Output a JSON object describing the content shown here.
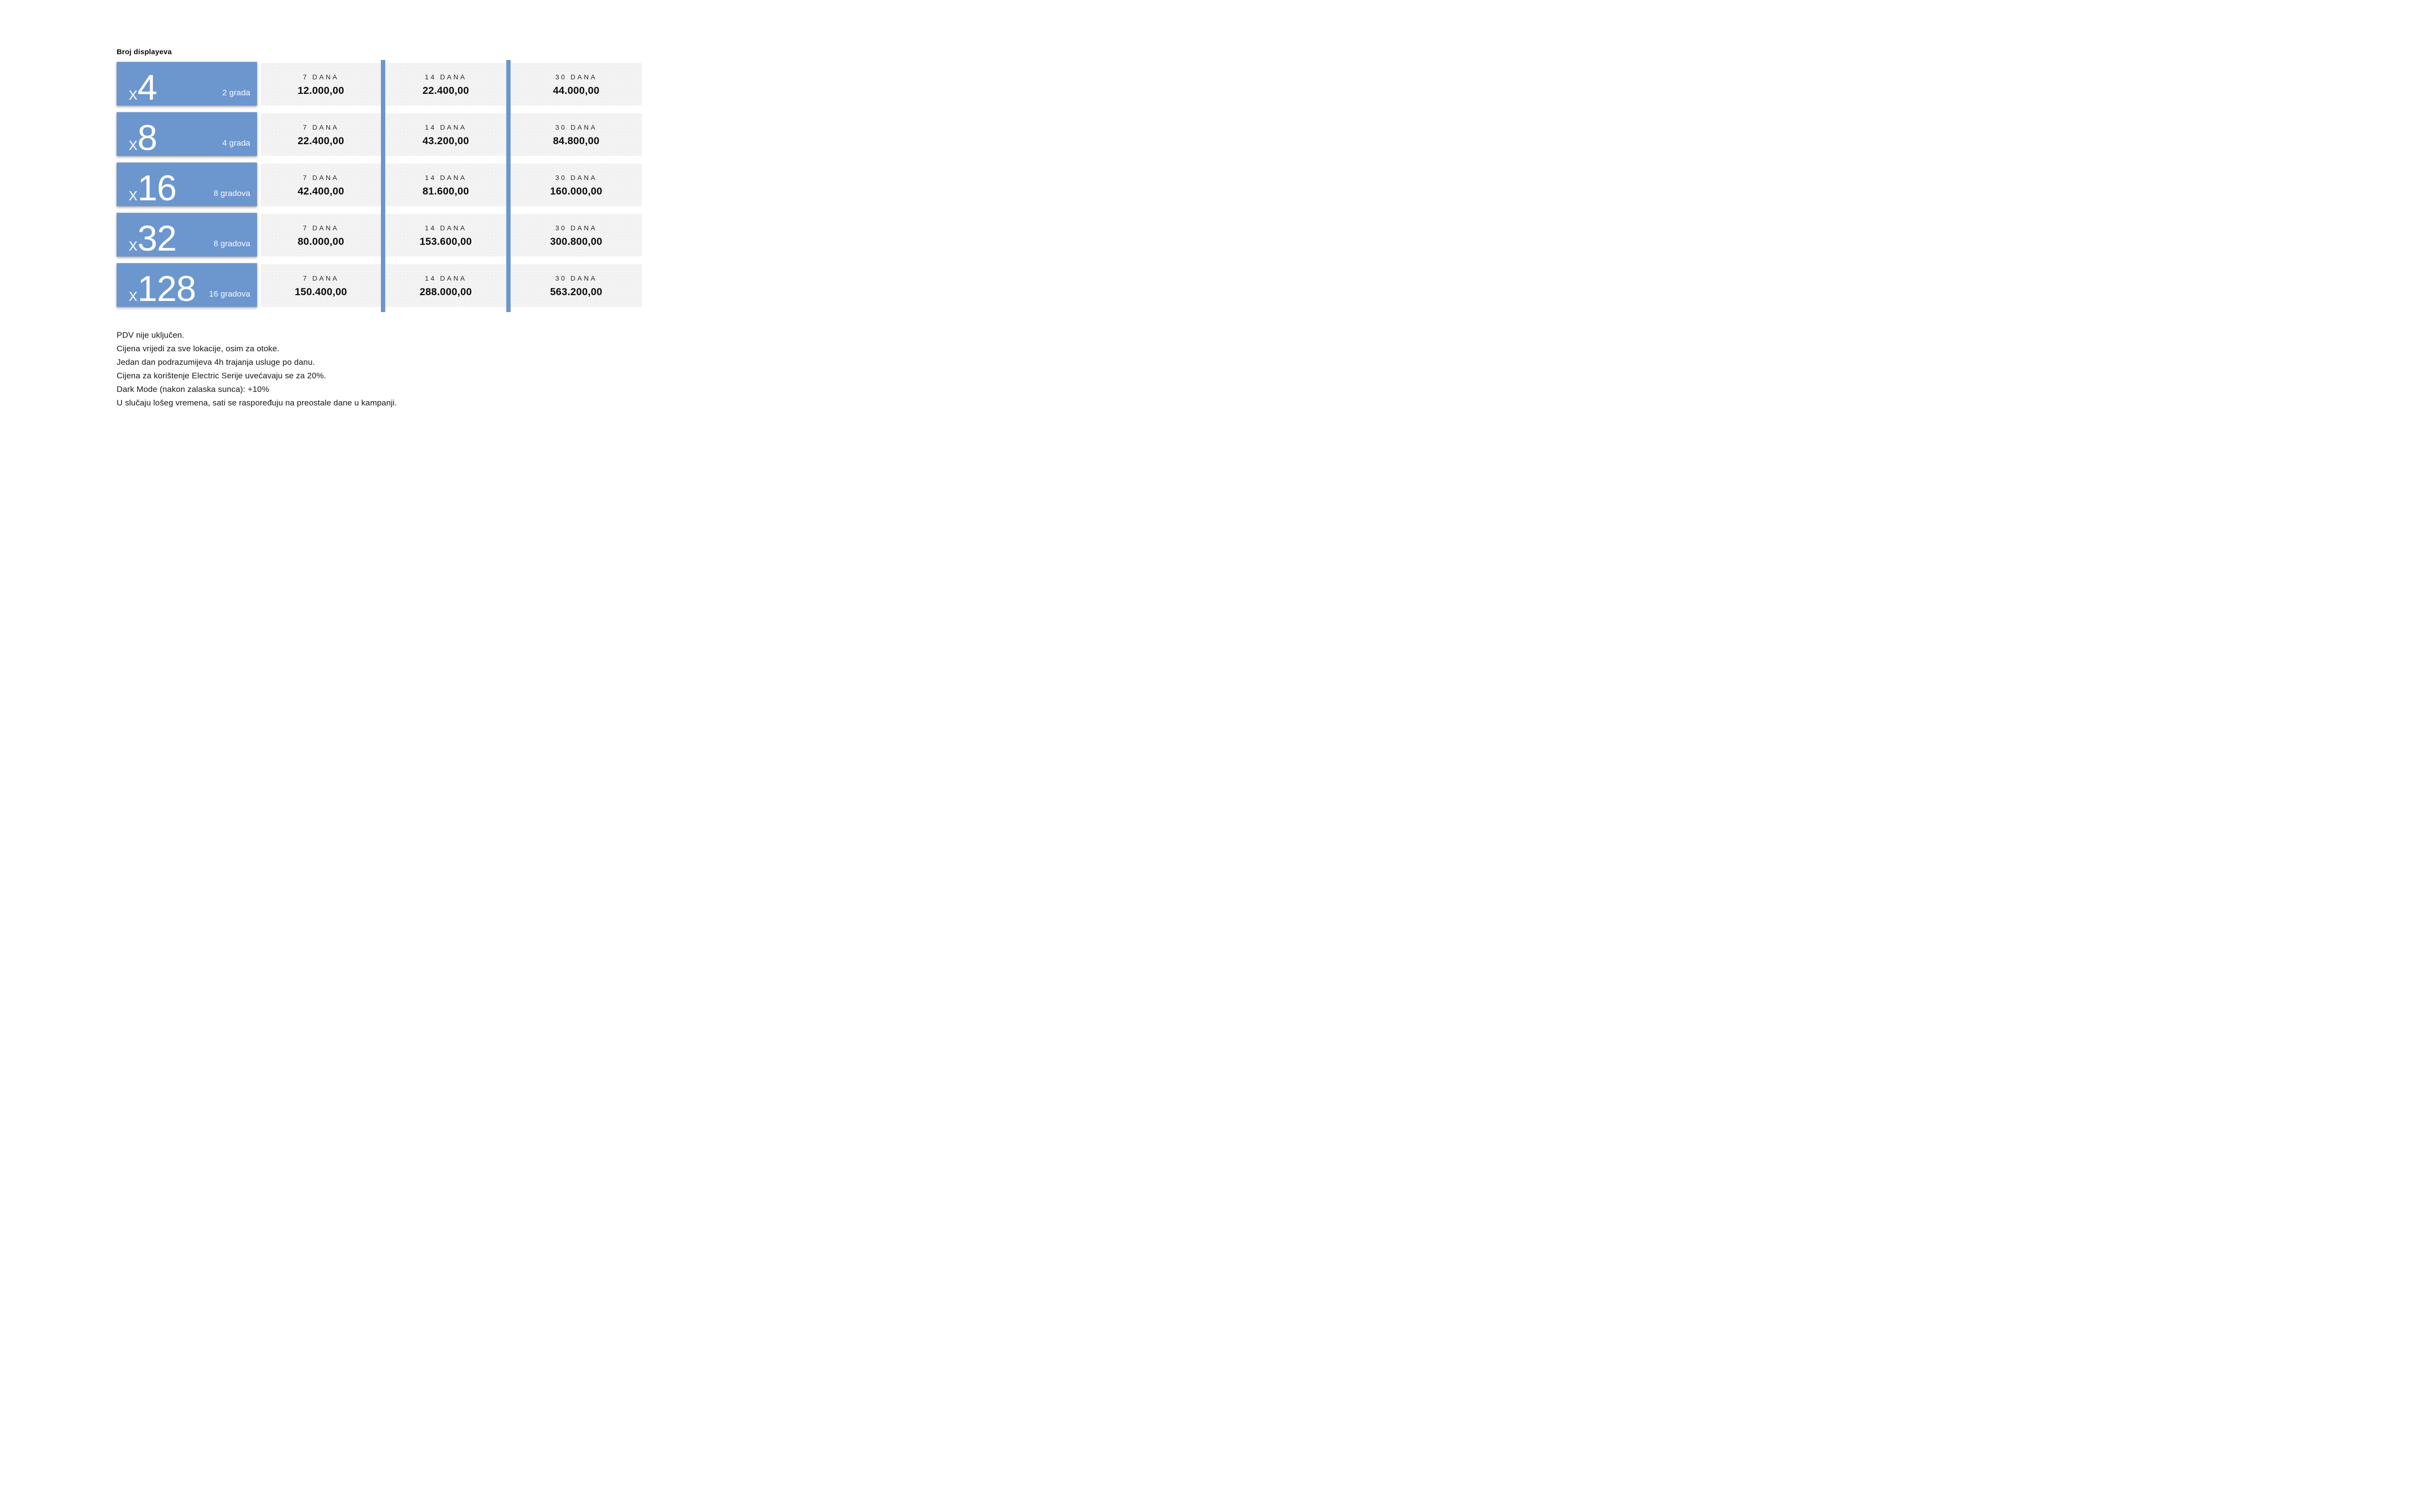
{
  "header": {
    "title": "Broj displayeva"
  },
  "colors": {
    "accent_blue": "#6c96ce",
    "panel_gray": "#f3f3f4",
    "text_dark": "#0d0d0d",
    "page_background": "#ffffff"
  },
  "table": {
    "rows": [
      {
        "multiplier_prefix": "x",
        "displays": "4",
        "cities": "2 grada",
        "prices": [
          {
            "duration": "7 DANA",
            "amount": "12.000,00"
          },
          {
            "duration": "14 DANA",
            "amount": "22.400,00"
          },
          {
            "duration": "30 DANA",
            "amount": "44.000,00"
          }
        ]
      },
      {
        "multiplier_prefix": "x",
        "displays": "8",
        "cities": "4 grada",
        "prices": [
          {
            "duration": "7 DANA",
            "amount": "22.400,00"
          },
          {
            "duration": "14 DANA",
            "amount": "43.200,00"
          },
          {
            "duration": "30 DANA",
            "amount": "84.800,00"
          }
        ]
      },
      {
        "multiplier_prefix": "x",
        "displays": "16",
        "cities": "8 gradova",
        "prices": [
          {
            "duration": "7 DANA",
            "amount": "42.400,00"
          },
          {
            "duration": "14 DANA",
            "amount": "81.600,00"
          },
          {
            "duration": "30 DANA",
            "amount": "160.000,00"
          }
        ]
      },
      {
        "multiplier_prefix": "x",
        "displays": "32",
        "cities": "8 gradova",
        "prices": [
          {
            "duration": "7 DANA",
            "amount": "80.000,00"
          },
          {
            "duration": "14 DANA",
            "amount": "153.600,00"
          },
          {
            "duration": "30 DANA",
            "amount": "300.800,00"
          }
        ]
      },
      {
        "multiplier_prefix": "x",
        "displays": "128",
        "cities": "16 gradova",
        "prices": [
          {
            "duration": "7 DANA",
            "amount": "150.400,00"
          },
          {
            "duration": "14 DANA",
            "amount": "288.000,00"
          },
          {
            "duration": "30 DANA",
            "amount": "563.200,00"
          }
        ]
      }
    ]
  },
  "notes": [
    "PDV nije uključen.",
    "Cijena vrijedi za sve lokacije, osim za otoke.",
    "Jedan dan podrazumijeva 4h trajanja usluge po danu.",
    "Cijena za korištenje Electric Serije uvećavaju se za 20%.",
    "Dark Mode (nakon zalaska sunca): +10%",
    "U slučaju lošeg vremena, sati se raspoređuju na preostale dane u kampanji."
  ]
}
